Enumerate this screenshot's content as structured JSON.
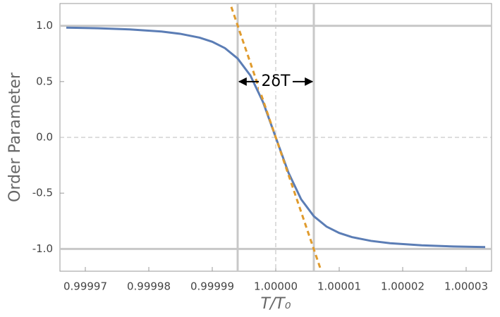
{
  "chart_data": {
    "type": "line",
    "x_label": "T/T₀",
    "y_label": "Order Parameter",
    "annotation": "2δT",
    "xlim": [
      0.999966,
      1.000034
    ],
    "ylim": [
      -1.2,
      1.2
    ],
    "xticks": [
      0.99997,
      0.99998,
      0.99999,
      {
        "value": 1,
        "label": "1.00000"
      },
      1.00001,
      1.00002,
      1.00003
    ],
    "yticks": [
      {
        "value": 1,
        "label": "1.0"
      },
      0.5,
      {
        "value": 0,
        "label": "0.0"
      },
      -0.5,
      {
        "value": -1,
        "label": "-1.0"
      }
    ],
    "reference_lines": {
      "x": [
        0.999994,
        1.000006
      ],
      "y": [
        -1,
        1
      ]
    },
    "dashed_lines": {
      "x": [
        1
      ],
      "y": [
        0
      ]
    },
    "series": [
      {
        "color": "#5b7db5",
        "dash": false,
        "x": [
          0.999967,
          0.999972,
          0.999977,
          0.999982,
          0.999985,
          0.999988,
          0.99999,
          0.999992,
          0.999994,
          0.999996,
          0.999998,
          1,
          1.000002,
          1.000004,
          1.000006,
          1.000008,
          1.00001,
          1.000012,
          1.000015,
          1.000018,
          1.000023,
          1.000028,
          1.000033
        ],
        "values": [
          0.984,
          0.978,
          0.968,
          0.949,
          0.928,
          0.894,
          0.857,
          0.8,
          0.707,
          0.555,
          0.316,
          0,
          -0.316,
          -0.555,
          -0.707,
          -0.8,
          -0.857,
          -0.894,
          -0.928,
          -0.949,
          -0.968,
          -0.978,
          -0.984
        ]
      },
      {
        "color": "#e09b2d",
        "dash": true,
        "x": [
          0.999993,
          1.000007
        ],
        "values": [
          1.17,
          -1.17
        ]
      }
    ]
  }
}
